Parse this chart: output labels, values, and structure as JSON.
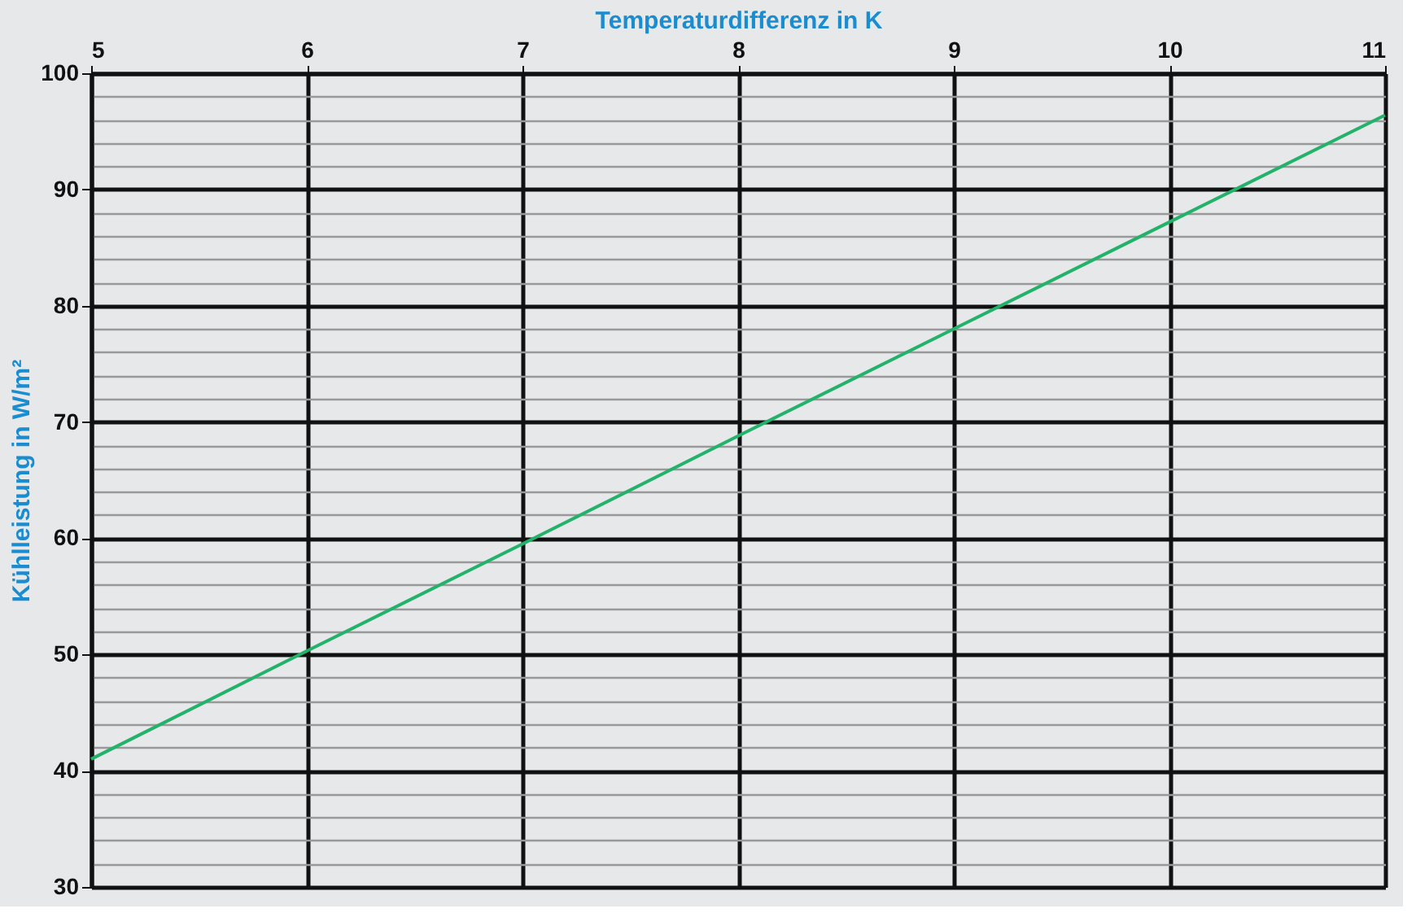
{
  "chart_data": {
    "type": "line",
    "xlabel": "Temperaturdifferenz in K",
    "ylabel": "Kühlleistung in W/m²",
    "x": [
      5,
      6,
      7,
      8,
      9,
      10,
      11
    ],
    "series": [
      {
        "color": "#22b26a",
        "values": [
          41,
          50.3,
          59.5,
          68.8,
          78,
          87.2,
          96.4
        ]
      }
    ],
    "xlim": [
      5,
      11
    ],
    "xticks": [
      5,
      6,
      7,
      8,
      9,
      10,
      11
    ],
    "ylim": [
      30,
      100
    ],
    "yticks": [
      30,
      {
        "value": 32,
        "label": null
      },
      {
        "value": 34,
        "label": null
      },
      {
        "value": 36,
        "label": null
      },
      {
        "value": 38,
        "label": null
      },
      40,
      {
        "value": 42,
        "label": null
      },
      {
        "value": 44,
        "label": null
      },
      {
        "value": 46,
        "label": null
      },
      {
        "value": 48,
        "label": null
      },
      50,
      {
        "value": 52,
        "label": null
      },
      {
        "value": 54,
        "label": null
      },
      {
        "value": 56,
        "label": null
      },
      {
        "value": 58,
        "label": null
      },
      60,
      {
        "value": 62,
        "label": null
      },
      {
        "value": 64,
        "label": null
      },
      {
        "value": 66,
        "label": null
      },
      {
        "value": 68,
        "label": null
      },
      70,
      {
        "value": 72,
        "label": null
      },
      {
        "value": 74,
        "label": null
      },
      {
        "value": 76,
        "label": null
      },
      {
        "value": 78,
        "label": null
      },
      80,
      {
        "value": 82,
        "label": null
      },
      {
        "value": 84,
        "label": null
      },
      {
        "value": 86,
        "label": null
      },
      {
        "value": 88,
        "label": null
      },
      90,
      {
        "value": 92,
        "label": null
      },
      {
        "value": 94,
        "label": null
      },
      {
        "value": 96,
        "label": null
      },
      {
        "value": 98,
        "label": null
      },
      100
    ],
    "grid": true,
    "marker": "none",
    "line_style": "solid"
  }
}
